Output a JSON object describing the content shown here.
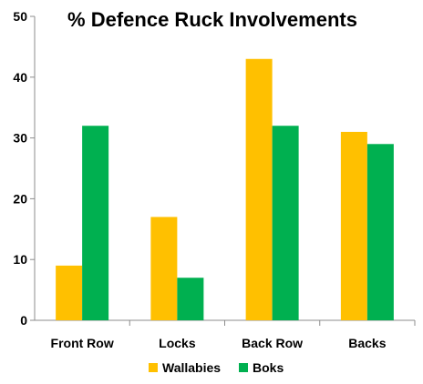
{
  "chart_data": {
    "type": "bar",
    "title": "% Defence Ruck Involvements",
    "categories": [
      "Front Row",
      "Locks",
      "Back Row",
      "Backs"
    ],
    "series": [
      {
        "name": "Wallabies",
        "values": [
          9,
          17,
          43,
          31
        ],
        "color": "#FFC000"
      },
      {
        "name": "Boks",
        "values": [
          32,
          7,
          32,
          29
        ],
        "color": "#00B050"
      }
    ],
    "ylim": [
      0,
      50
    ],
    "yticks": [
      "0",
      "10",
      "20",
      "30",
      "40",
      "50"
    ],
    "grid": false,
    "legend_position": "bottom"
  }
}
